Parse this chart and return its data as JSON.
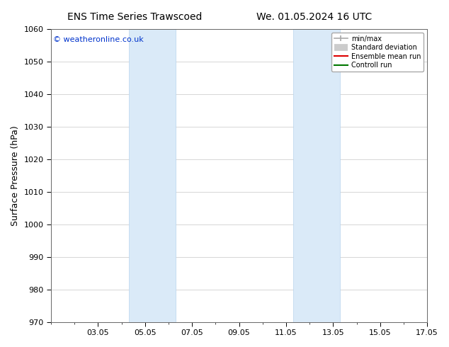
{
  "title_left": "ENS Time Series Trawscoed",
  "title_right": "We. 01.05.2024 16 UTC",
  "ylabel": "Surface Pressure (hPa)",
  "ylim": [
    970,
    1060
  ],
  "yticks": [
    970,
    980,
    990,
    1000,
    1010,
    1020,
    1030,
    1040,
    1050,
    1060
  ],
  "xlim": [
    0,
    16
  ],
  "xtick_positions": [
    2,
    4,
    6,
    8,
    10,
    12,
    14,
    16
  ],
  "xtick_labels": [
    "03.05",
    "05.05",
    "07.05",
    "09.05",
    "11.05",
    "13.05",
    "15.05",
    "17.05"
  ],
  "shaded_bands": [
    {
      "xmin": 3.3,
      "xmax": 5.3
    },
    {
      "xmin": 10.3,
      "xmax": 12.3
    }
  ],
  "band_color": "#daeaf8",
  "band_edge_color": "#b8d4ee",
  "copyright_text": "© weatheronline.co.uk",
  "copyright_color": "#0033cc",
  "legend_labels": [
    "min/max",
    "Standard deviation",
    "Ensemble mean run",
    "Controll run"
  ],
  "legend_colors": [
    "#aaaaaa",
    "#cccccc",
    "#dd0000",
    "#007700"
  ],
  "background_color": "#ffffff",
  "plot_bg_color": "#ffffff",
  "grid_color": "#d0d0d0",
  "title_fontsize": 10,
  "tick_fontsize": 8,
  "label_fontsize": 9,
  "copyright_fontsize": 8
}
